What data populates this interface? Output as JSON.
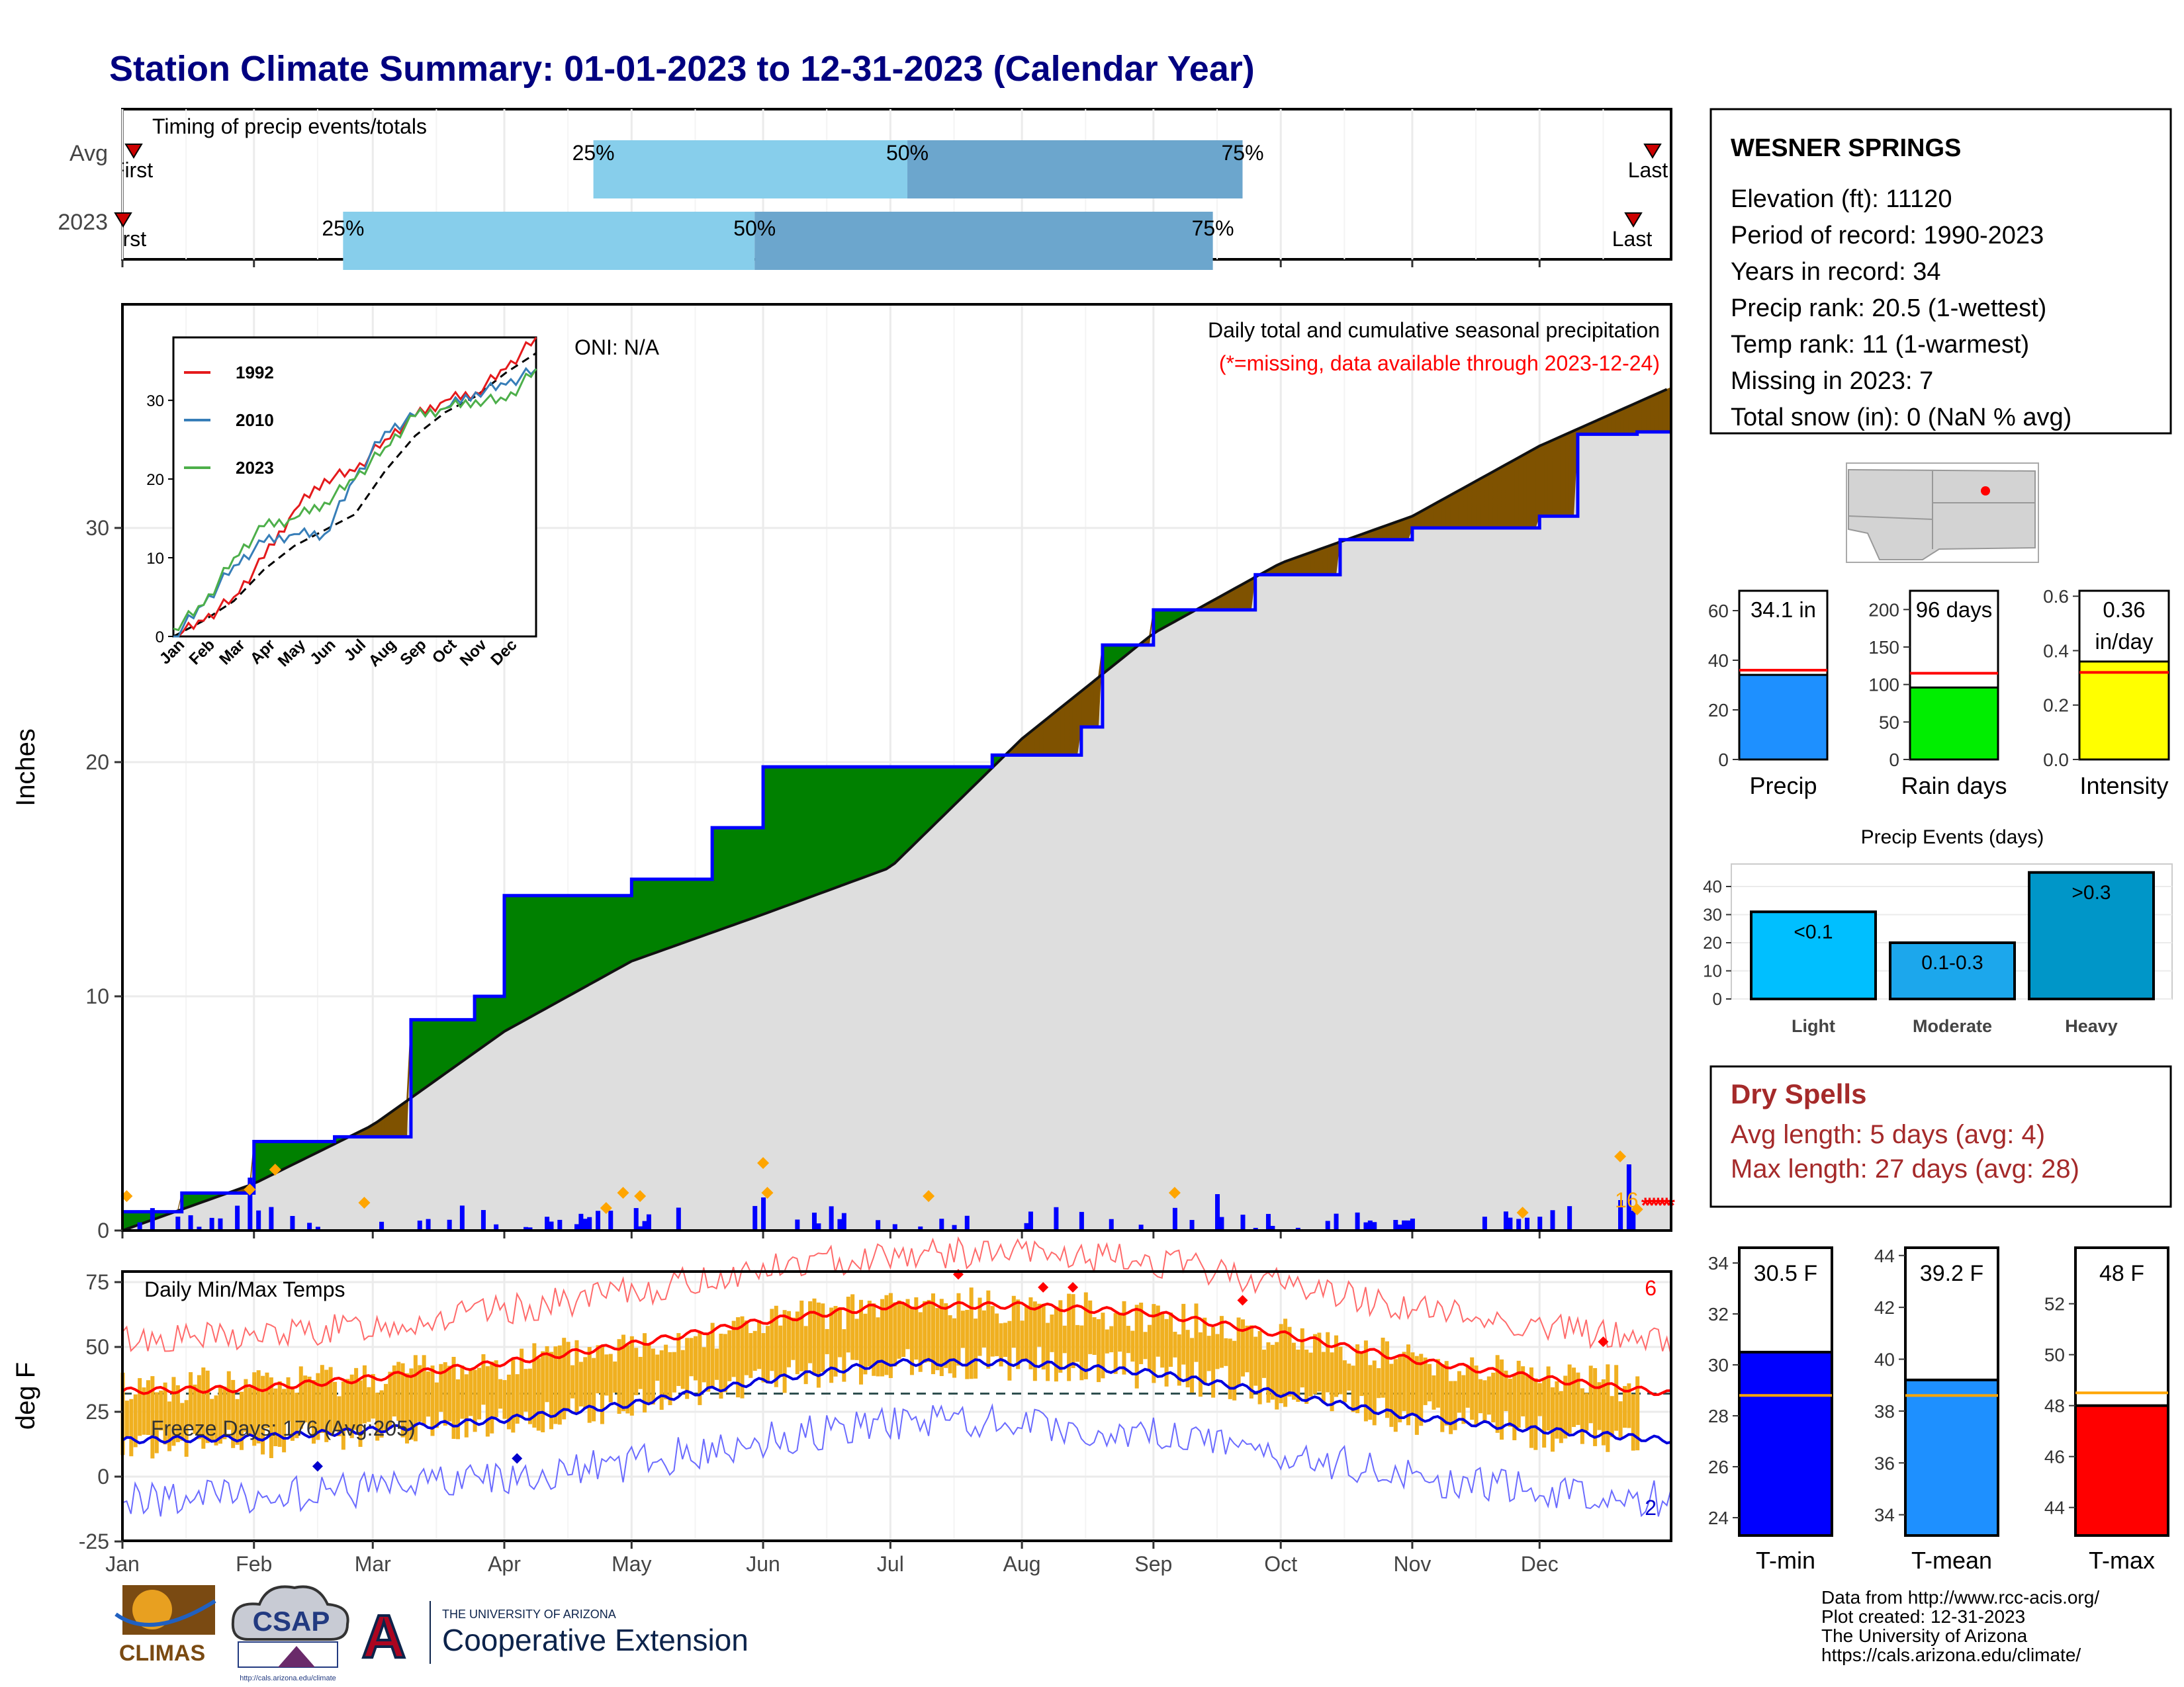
{
  "title": "Station Climate Summary: 01-01-2023 to 12-31-2023 (Calendar Year)",
  "months": [
    "Jan",
    "Feb",
    "Mar",
    "Apr",
    "May",
    "Jun",
    "Jul",
    "Aug",
    "Sep",
    "Oct",
    "Nov",
    "Dec"
  ],
  "timing": {
    "title": "Timing of precip events/totals",
    "rows": [
      "Avg",
      "2023"
    ],
    "first_label": "First",
    "last_label": "Last",
    "pct_labels": [
      "25%",
      "50%",
      "75%"
    ]
  },
  "precip_panel": {
    "ylabel": "Inches",
    "oni": "ONI: N/A",
    "caption": "Daily total and cumulative seasonal precipitation",
    "missing_note": "(*=missing, data available through 2023-12-24)",
    "missing_count": "16",
    "yticks": [
      "0",
      "10",
      "20",
      "30"
    ]
  },
  "inset": {
    "legend": [
      "1992",
      "2010",
      "2023"
    ],
    "yticks": [
      "0",
      "10",
      "20",
      "30"
    ]
  },
  "temp_panel": {
    "ylabel": "deg F",
    "title": "Daily Min/Max Temps",
    "freeze": "Freeze Days: 176 (Avg:205)",
    "record_high_count": "6",
    "record_low_count": "2",
    "yticks": [
      "-25",
      "0",
      "25",
      "50",
      "75"
    ]
  },
  "station": {
    "name": "WESNER SPRINGS",
    "lines": [
      "Elevation (ft): 11120",
      "Period of record: 1990-2023",
      "Years in record: 34",
      "Precip rank: 20.5 (1-wettest)",
      "Temp rank: 11 (1-warmest)",
      "Missing in 2023: 7",
      "Total snow (in): 0 (NaN % avg)"
    ]
  },
  "summary_bars": [
    {
      "label": "Precip",
      "value_text": "34.1 in",
      "value": 34.1,
      "avg": 36.0,
      "color": "#1E90FF",
      "yticks": [
        "0",
        "20",
        "40",
        "60"
      ]
    },
    {
      "label": "Rain days",
      "value_text": "96 days",
      "value": 96,
      "avg": 115,
      "color": "#00EE00",
      "yticks": [
        "0",
        "50",
        "100",
        "150",
        "200"
      ]
    },
    {
      "label": "Intensity",
      "value_text": "0.36",
      "value_text2": "in/day",
      "value": 0.36,
      "avg": 0.32,
      "color": "#FFFF00",
      "yticks": [
        "0.0",
        "0.2",
        "0.4",
        "0.6"
      ]
    }
  ],
  "events": {
    "title": "Precip Events (days)",
    "categories": [
      "Light",
      "Moderate",
      "Heavy"
    ],
    "labels": [
      "<0.1",
      "0.1-0.3",
      ">0.3"
    ],
    "values": [
      31,
      20,
      45
    ],
    "colors": [
      "#00BFFF",
      "#1CA7EC",
      "#0096C8"
    ],
    "yticks": [
      "0",
      "10",
      "20",
      "30",
      "40"
    ]
  },
  "dry_spells": {
    "title": "Dry Spells",
    "avg": "Avg length: 5 days (avg: 4)",
    "max": "Max length: 27 days (avg: 28)"
  },
  "temp_bars": [
    {
      "label": "T-min",
      "value_text": "30.5 F",
      "value": 30.5,
      "avg": 28.8,
      "color": "#0000FF",
      "yticks": [
        "24",
        "26",
        "28",
        "30",
        "32",
        "34"
      ]
    },
    {
      "label": "T-mean",
      "value_text": "39.2 F",
      "value": 39.2,
      "avg": 38.6,
      "color": "#1E90FF",
      "yticks": [
        "34",
        "36",
        "38",
        "40",
        "42",
        "44"
      ]
    },
    {
      "label": "T-max",
      "value_text": "48 F",
      "value": 48.0,
      "avg": 48.5,
      "color": "#FF0000",
      "yticks": [
        "44",
        "46",
        "48",
        "50",
        "52"
      ]
    }
  ],
  "credits": [
    "Data from http://www.rcc-acis.org/",
    "Plot created: 12-31-2023",
    "The University of Arizona",
    "https://cals.arizona.edu/climate/"
  ],
  "logos": {
    "climas": "CLIMAS",
    "csap": "CSAP",
    "csap_url": "http://cals.arizona.edu/climate",
    "ua_small": "THE UNIVERSITY OF ARIZONA",
    "ua_big": "Cooperative Extension"
  },
  "chart_data": [
    {
      "type": "bar",
      "title": "Timing of precip events/totals",
      "categories": [
        "Avg",
        "2023"
      ],
      "series": [
        {
          "name": "25%",
          "values": [
            "Apr 22",
            "Feb 22"
          ]
        },
        {
          "name": "50%",
          "values": [
            "Jul 5",
            "May 30"
          ]
        },
        {
          "name": "75%",
          "values": [
            "Sep 22",
            "Sep 15"
          ]
        }
      ]
    },
    {
      "type": "area",
      "ylabel": "Inches",
      "ylim": [
        0,
        36
      ],
      "series": [
        {
          "name": "2023",
          "x": [
            "Jan 1",
            "Jan 15",
            "Feb 1",
            "Feb 20",
            "Mar 10",
            "Mar 25",
            "Apr 1",
            "May 1",
            "May 20",
            "Jun 1",
            "Jun 15",
            "Jul 1",
            "Jul 25",
            "Aug 15",
            "Aug 20",
            "Sep 1",
            "Sep 25",
            "Oct 15",
            "Nov 1",
            "Dec 1",
            "Dec 10",
            "Dec 24"
          ],
          "values": [
            0.8,
            1.6,
            3.8,
            4.0,
            9.0,
            10.0,
            14.3,
            15.0,
            17.2,
            19.8,
            19.8,
            19.8,
            20.3,
            21.5,
            25.0,
            26.5,
            28.0,
            29.5,
            30.0,
            30.5,
            34.0,
            34.1
          ]
        },
        {
          "name": "Avg",
          "x": [
            "Jan 1",
            "Feb 1",
            "Mar 1",
            "Apr 1",
            "May 1",
            "Jun 1",
            "Jul 1",
            "Aug 1",
            "Sep 1",
            "Oct 1",
            "Nov 1",
            "Dec 1",
            "Dec 31"
          ],
          "values": [
            0,
            2.0,
            4.5,
            8.5,
            11.5,
            13.5,
            15.5,
            21.0,
            25.5,
            28.5,
            30.5,
            33.5,
            36.0
          ]
        }
      ]
    },
    {
      "type": "line",
      "ylim": [
        0,
        38
      ],
      "series": [
        {
          "name": "1992",
          "x": [
            "Jan",
            "Feb",
            "Mar",
            "Apr",
            "May",
            "Jun",
            "Jul",
            "Aug",
            "Sep",
            "Oct",
            "Nov",
            "Dec",
            "end"
          ],
          "values": [
            0,
            2,
            5,
            10,
            16,
            20,
            21,
            25,
            28,
            30,
            31,
            34,
            38
          ]
        },
        {
          "name": "2010",
          "x": [
            "Jan",
            "Feb",
            "Mar",
            "Apr",
            "May",
            "Jun",
            "Jul",
            "Aug",
            "Sep",
            "Oct",
            "Nov",
            "Dec",
            "end"
          ],
          "values": [
            0,
            4,
            9,
            12,
            13,
            13,
            20,
            26,
            28,
            29,
            31,
            32,
            34
          ]
        },
        {
          "name": "2023",
          "x": [
            "Jan",
            "Feb",
            "Mar",
            "Apr",
            "May",
            "Jun",
            "Jul",
            "Aug",
            "Sep",
            "Oct",
            "Nov",
            "Dec",
            "end"
          ],
          "values": [
            1,
            4,
            10,
            14,
            15,
            17,
            20,
            24,
            28,
            29,
            30,
            30,
            34
          ]
        }
      ]
    },
    {
      "type": "line",
      "title": "Daily Min/Max Temps",
      "ylabel": "deg F",
      "ylim": [
        -25,
        90
      ],
      "series": [
        {
          "name": "Avg max",
          "x": [
            "Jan",
            "Feb",
            "Mar",
            "Apr",
            "May",
            "Jun",
            "Jul",
            "Aug",
            "Sep",
            "Oct",
            "Nov",
            "Dec",
            "end"
          ],
          "values": [
            33,
            34,
            38,
            44,
            51,
            60,
            66,
            66,
            63,
            55,
            45,
            38,
            32
          ]
        },
        {
          "name": "Avg min",
          "x": [
            "Jan",
            "Feb",
            "Mar",
            "Apr",
            "May",
            "Jun",
            "Jul",
            "Aug",
            "Sep",
            "Oct",
            "Nov",
            "Dec",
            "end"
          ],
          "values": [
            14,
            15,
            18,
            22,
            28,
            37,
            44,
            44,
            40,
            32,
            23,
            18,
            14
          ]
        }
      ]
    },
    {
      "type": "bar",
      "title": "Precip Events (days)",
      "categories": [
        "Light",
        "Moderate",
        "Heavy"
      ],
      "values": [
        31,
        20,
        45
      ]
    }
  ]
}
